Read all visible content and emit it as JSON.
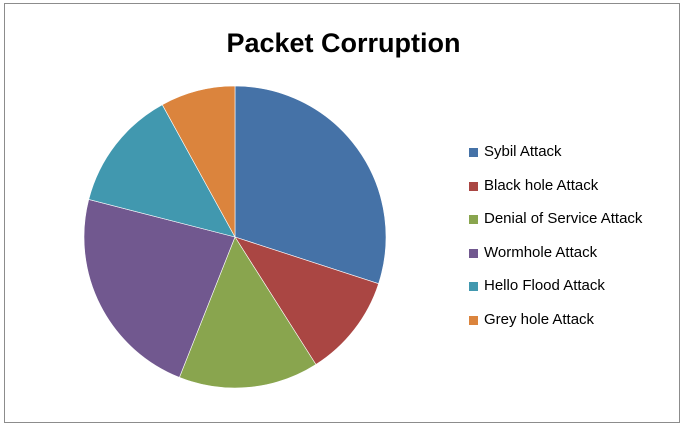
{
  "chart_data": {
    "type": "pie",
    "title": "Packet Corruption",
    "legend_position": "right",
    "slices": [
      {
        "name": "Sybil Attack",
        "value": 30,
        "color": "#4572A7"
      },
      {
        "name": "Black hole Attack",
        "value": 11,
        "color": "#AA4643"
      },
      {
        "name": "Denial of Service Attack",
        "value": 15,
        "color": "#89A54E"
      },
      {
        "name": "Wormhole Attack",
        "value": 23,
        "color": "#71588F"
      },
      {
        "name": "Hello Flood Attack",
        "value": 13,
        "color": "#4198AF"
      },
      {
        "name": "Grey hole Attack",
        "value": 8,
        "color": "#DB843D"
      }
    ]
  }
}
